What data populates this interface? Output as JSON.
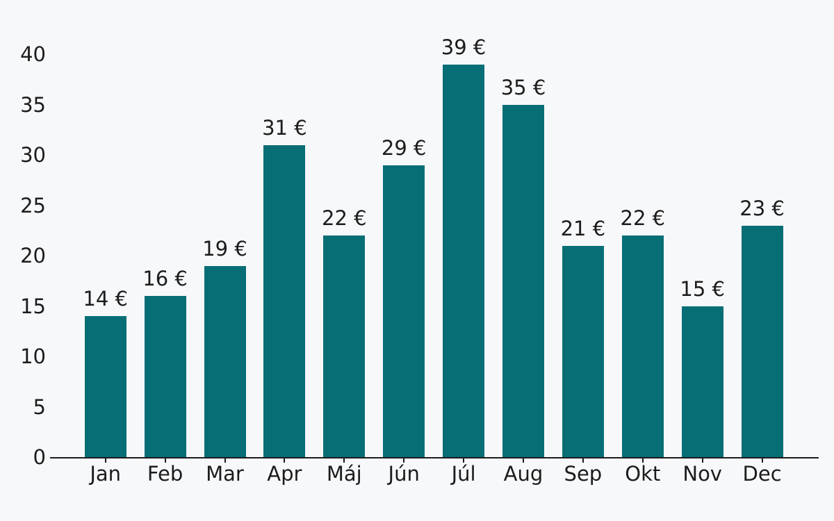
{
  "chart_data": {
    "type": "bar",
    "title": "",
    "xlabel": "",
    "ylabel": "",
    "categories": [
      "Jan",
      "Feb",
      "Mar",
      "Apr",
      "Máj",
      "Jún",
      "Júl",
      "Aug",
      "Sep",
      "Okt",
      "Nov",
      "Dec"
    ],
    "values": [
      14,
      16,
      19,
      31,
      22,
      29,
      39,
      35,
      21,
      22,
      15,
      23
    ],
    "value_labels": [
      "14 €",
      "16 €",
      "19 €",
      "31 €",
      "22 €",
      "29 €",
      "39 €",
      "35 €",
      "21 €",
      "22 €",
      "15 €",
      "23 €"
    ],
    "currency_suffix": " €",
    "yticks": [
      0,
      5,
      10,
      15,
      20,
      25,
      30,
      35,
      40
    ],
    "ylim": [
      0,
      40
    ],
    "grid": false,
    "legend": null,
    "colors": {
      "bar": "#086e75",
      "background": "#f7f8fa",
      "text": "#1c1c1c",
      "axis": "#1c1c1c"
    }
  }
}
